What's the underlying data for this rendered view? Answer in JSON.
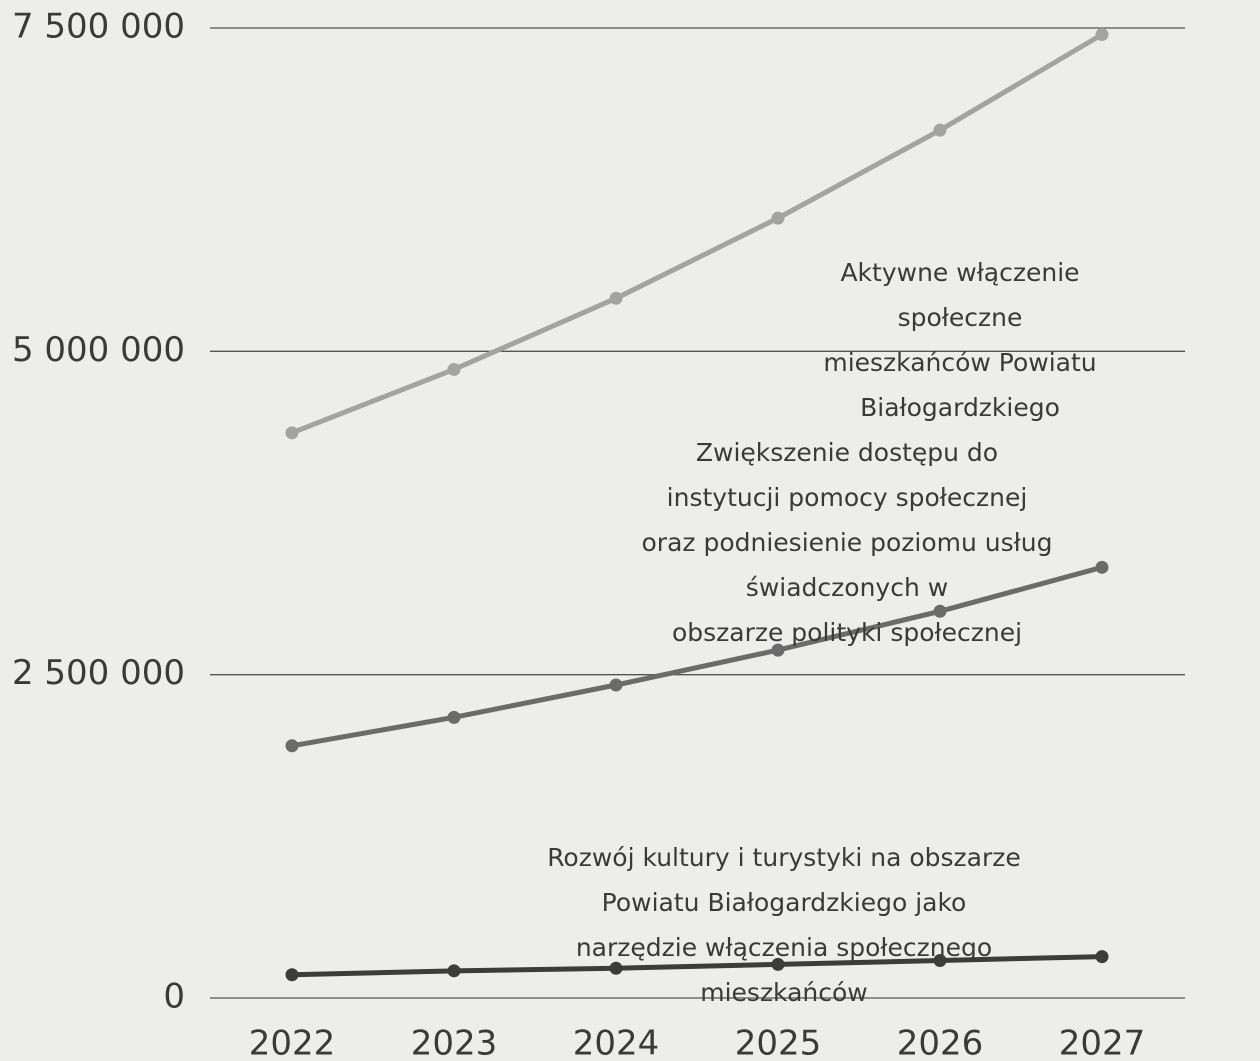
{
  "chart_data": {
    "type": "line",
    "x": [
      2022,
      2023,
      2024,
      2025,
      2026,
      2027
    ],
    "series": [
      {
        "name": "Aktywne włączenie społeczne\nmieszkańców Powiatu Białogardzkiego",
        "color": "#a3a3a3",
        "values": [
          4370000,
          4860000,
          5410000,
          6030000,
          6710000,
          7450000
        ]
      },
      {
        "name": "Zwiększenie dostępu do instytucji pomocy społecznej\noraz podniesienie poziomu usług świadczonych w\nobszarze polityki społecznej",
        "color": "#6b6b6b",
        "values": [
          1950000,
          2170000,
          2420000,
          2690000,
          2990000,
          3330000
        ]
      },
      {
        "name": "Rozwój kultury i turystyki na obszarze Powiatu Białogardzkiego jako\nnarzędzie włączenia społecznego mieszkańców",
        "color": "#3c3c3c",
        "values": [
          180000,
          210000,
          230000,
          260000,
          290000,
          320000
        ]
      }
    ],
    "ylim": [
      0,
      7500000
    ],
    "yticks": [
      0,
      {
        "value": 2500000,
        "label": "2 500 000"
      },
      {
        "value": 5000000,
        "label": "5 000 000"
      },
      {
        "value": 7500000,
        "label": "7 500 000"
      }
    ],
    "grid": true
  }
}
